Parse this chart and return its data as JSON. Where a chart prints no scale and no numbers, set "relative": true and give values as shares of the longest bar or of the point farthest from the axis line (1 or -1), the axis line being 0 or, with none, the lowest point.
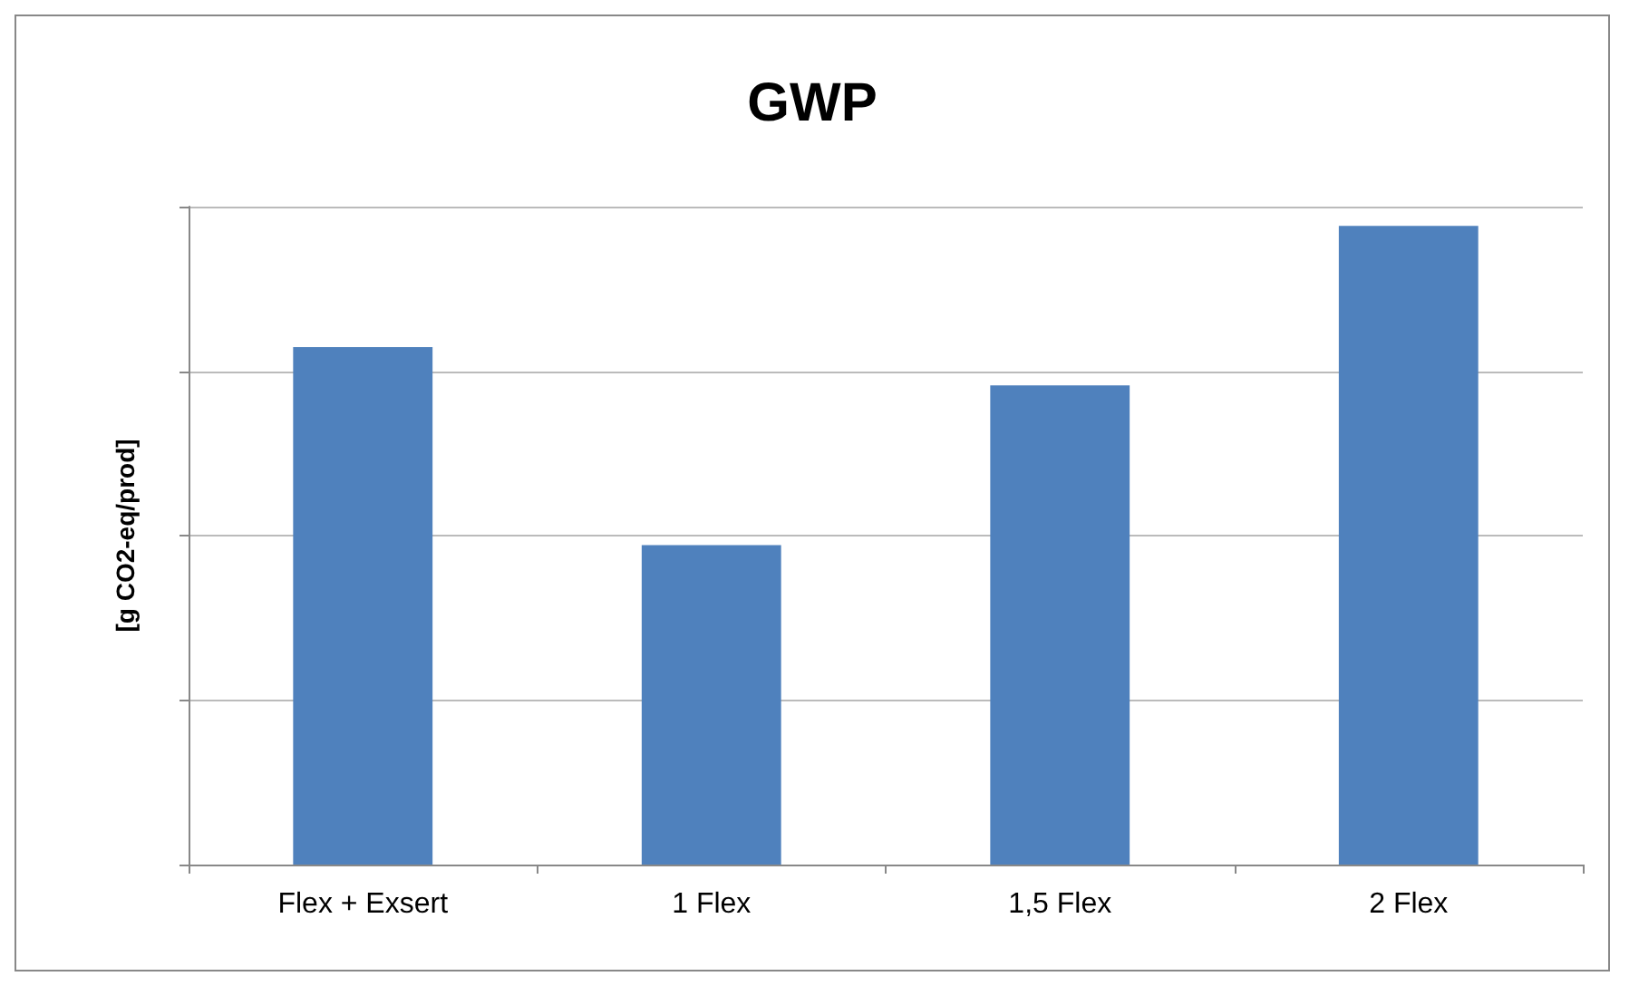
{
  "chart_data": {
    "type": "bar",
    "title": "GWP",
    "ylabel": "[g CO2-eq/prod]",
    "categories": [
      "Flex + Exsert",
      "1 Flex",
      "1,5 Flex",
      "2 Flex"
    ],
    "values": [
      0.81,
      0.5,
      0.75,
      1
    ],
    "color": "#4f81bd",
    "relative": true,
    "grid": "y"
  }
}
